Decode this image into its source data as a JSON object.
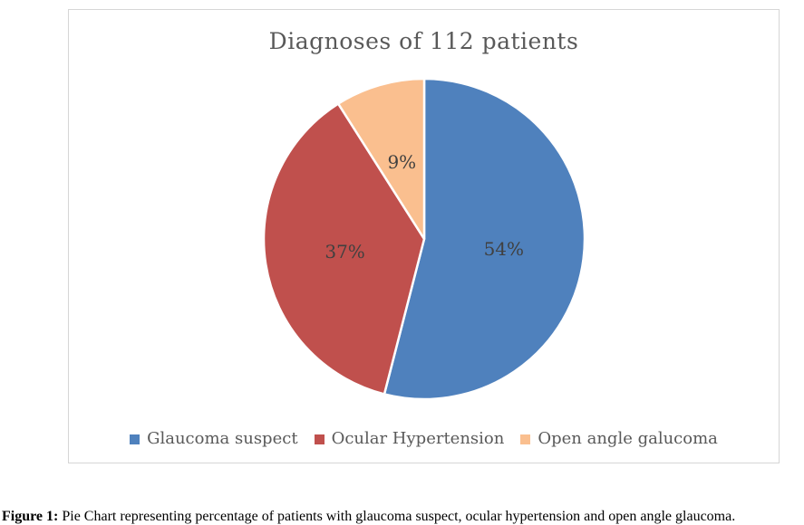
{
  "chart_data": {
    "type": "pie",
    "title": "Diagnoses of 112 patients",
    "total_patients": 112,
    "categories": [
      "Glaucoma suspect",
      "Ocular Hypertension",
      "Open angle galucoma"
    ],
    "values": [
      54,
      37,
      9
    ],
    "value_unit": "percent",
    "labels": [
      "54%",
      "37%",
      "9%"
    ],
    "colors": [
      "#4F81BD",
      "#C0504D",
      "#FABF8F"
    ],
    "start_angle_deg": 0,
    "direction": "clockwise",
    "legend_position": "bottom",
    "title_color": "#595959",
    "label_color": "#404040"
  },
  "figure": {
    "caption_prefix": "Figure 1:",
    "caption_text": "Pie Chart representing percentage of patients with glaucoma suspect, ocular hypertension and open angle glaucoma."
  }
}
